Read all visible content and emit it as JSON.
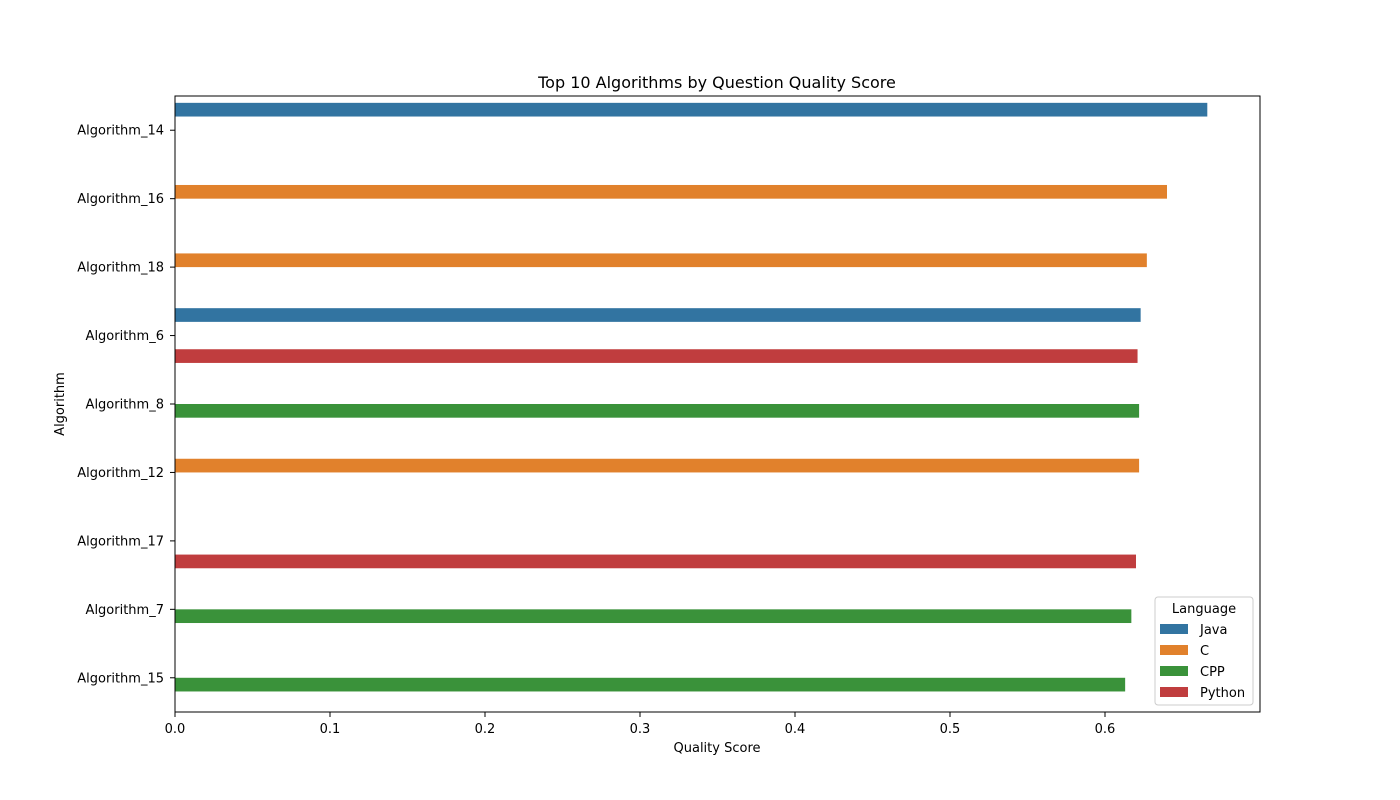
{
  "chart_data": {
    "type": "bar",
    "orientation": "horizontal",
    "title": "Top 10 Algorithms by Question Quality Score",
    "xlabel": "Quality Score",
    "ylabel": "Algorithm",
    "xlim": [
      0,
      0.7
    ],
    "xticks": [
      "0.0",
      "0.1",
      "0.2",
      "0.3",
      "0.4",
      "0.5",
      "0.6"
    ],
    "categories": [
      "Algorithm_14",
      "Algorithm_16",
      "Algorithm_18",
      "Algorithm_6",
      "Algorithm_8",
      "Algorithm_12",
      "Algorithm_17",
      "Algorithm_7",
      "Algorithm_15"
    ],
    "legend": {
      "title": "Language",
      "position": "bottom-right"
    },
    "grid": false,
    "series": [
      {
        "name": "Java",
        "color": "#3274a1",
        "values": [
          0.666,
          null,
          null,
          0.623,
          null,
          null,
          null,
          null,
          null
        ]
      },
      {
        "name": "C",
        "color": "#e1812c",
        "values": [
          null,
          0.64,
          0.627,
          null,
          null,
          0.622,
          null,
          null,
          null
        ]
      },
      {
        "name": "CPP",
        "color": "#3a923a",
        "values": [
          null,
          null,
          null,
          null,
          0.622,
          null,
          null,
          0.617,
          0.613
        ]
      },
      {
        "name": "Python",
        "color": "#c03d3e",
        "values": [
          null,
          null,
          null,
          0.621,
          null,
          null,
          0.62,
          null,
          null
        ]
      }
    ]
  }
}
